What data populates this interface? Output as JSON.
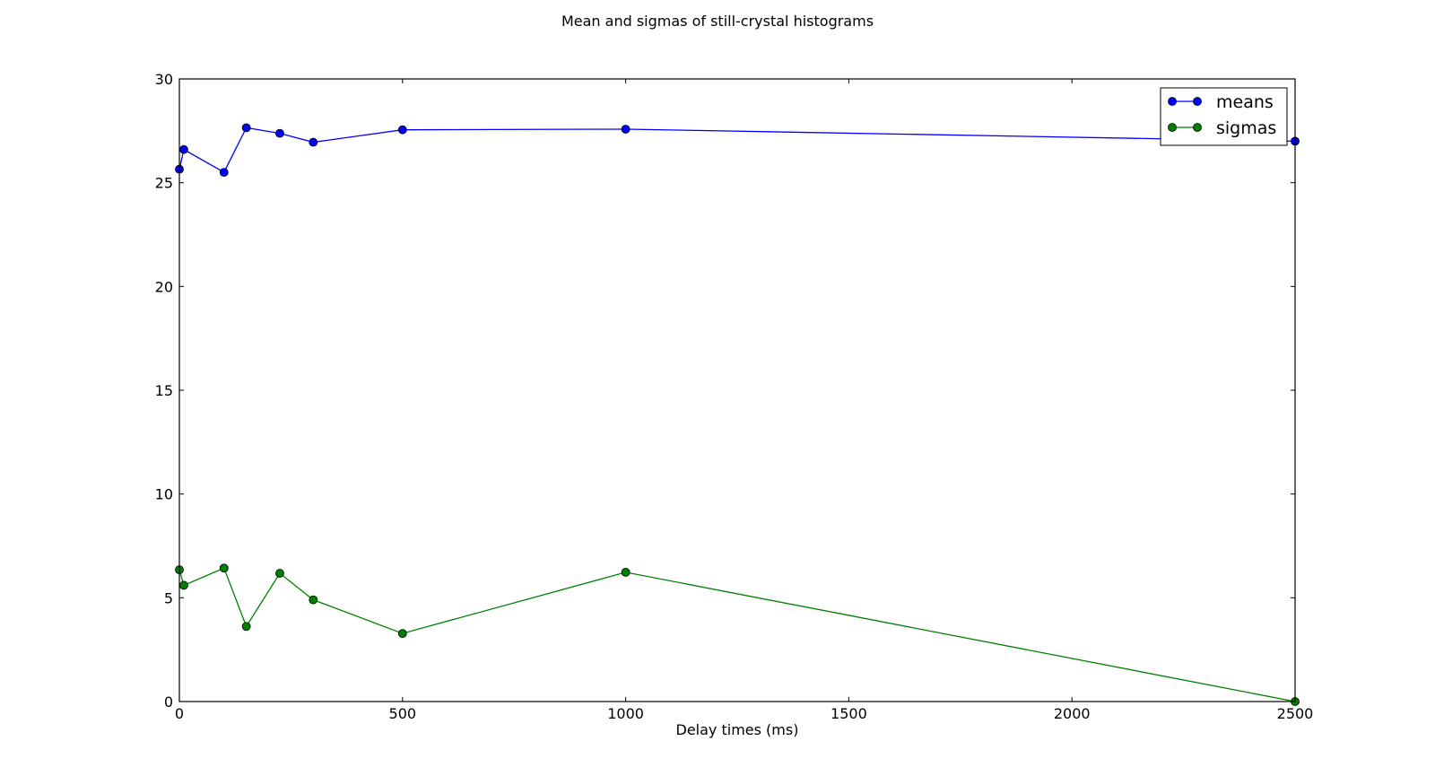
{
  "chart_data": {
    "type": "line",
    "title": "Mean and sigmas of still-crystal histograms",
    "xlabel": "Delay times (ms)",
    "ylabel": "",
    "xlim": [
      0,
      2500
    ],
    "ylim": [
      0,
      30
    ],
    "xticks": [
      0,
      500,
      1000,
      1500,
      2000,
      2500
    ],
    "yticks": [
      0,
      5,
      10,
      15,
      20,
      25,
      30
    ],
    "grid": false,
    "legend": "top-right",
    "x": [
      0,
      10,
      100,
      150,
      225,
      300,
      500,
      1000,
      2500
    ],
    "series": [
      {
        "name": "means",
        "color": "#0000ff",
        "marker": "circle",
        "values": [
          25.65,
          26.6,
          25.5,
          27.65,
          27.38,
          26.95,
          27.55,
          27.58,
          27.0
        ]
      },
      {
        "name": "sigmas",
        "color": "#008000",
        "marker": "circle",
        "values": [
          6.35,
          5.6,
          6.43,
          3.62,
          6.18,
          4.9,
          3.28,
          6.23,
          0.0
        ]
      }
    ]
  }
}
